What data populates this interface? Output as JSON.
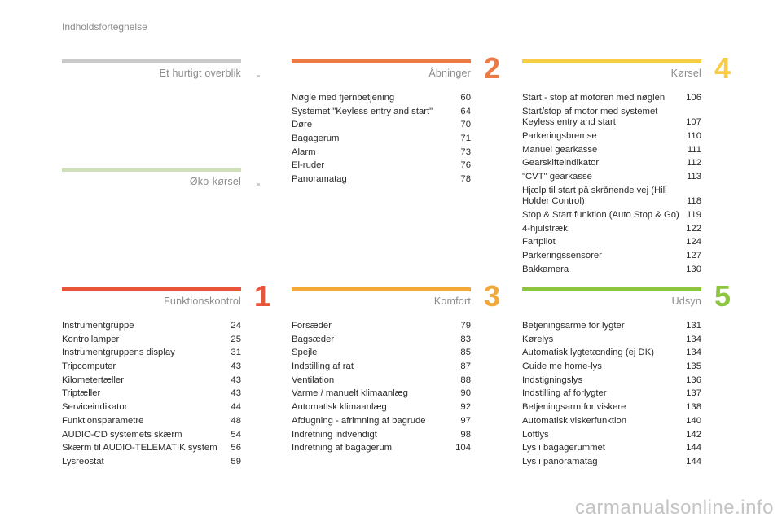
{
  "page_title": "Indholdsfortegnelse",
  "sections": {
    "quick": {
      "title": "Et hurtigt overblik",
      "color": "#c9c9c9"
    },
    "eco": {
      "title": "Øko-kørsel",
      "color": "#cfe0b8"
    },
    "funktion": {
      "title": "Funktionskontrol",
      "number": "1",
      "color": "#e8553a",
      "items": [
        {
          "label": "Instrumentgruppe",
          "page": "24"
        },
        {
          "label": "Kontrollamper",
          "page": "25"
        },
        {
          "label": "Instrumentgruppens display",
          "page": "31"
        },
        {
          "label": "Tripcomputer",
          "page": "43"
        },
        {
          "label": "Kilometertæller",
          "page": "43"
        },
        {
          "label": "Triptæller",
          "page": "43"
        },
        {
          "label": "Serviceindikator",
          "page": "44"
        },
        {
          "label": "Funktionsparametre",
          "page": "48"
        },
        {
          "label": "AUDIO-CD systemets skærm",
          "page": "54"
        },
        {
          "label": "Skærm til AUDIO-TELEMATIK system",
          "page": "56"
        },
        {
          "label": "Lysreostat",
          "page": "59"
        }
      ]
    },
    "aabninger": {
      "title": "Åbninger",
      "number": "2",
      "color": "#ec7a45",
      "items": [
        {
          "label": "Nøgle med fjernbetjening",
          "page": "60"
        },
        {
          "label": "Systemet \"Keyless entry and start\"",
          "page": "64"
        },
        {
          "label": "Døre",
          "page": "70"
        },
        {
          "label": "Bagagerum",
          "page": "71"
        },
        {
          "label": "Alarm",
          "page": "73"
        },
        {
          "label": "El-ruder",
          "page": "76"
        },
        {
          "label": "Panoramatag",
          "page": "78"
        }
      ]
    },
    "komfort": {
      "title": "Komfort",
      "number": "3",
      "color": "#f3a93a",
      "items": [
        {
          "label": "Forsæder",
          "page": "79"
        },
        {
          "label": "Bagsæder",
          "page": "83"
        },
        {
          "label": "Spejle",
          "page": "85"
        },
        {
          "label": "Indstilling af rat",
          "page": "87"
        },
        {
          "label": "Ventilation",
          "page": "88"
        },
        {
          "label": "Varme / manuelt klimaanlæg",
          "page": "90"
        },
        {
          "label": "Automatisk klimaanlæg",
          "page": "92"
        },
        {
          "label": "Afdugning - afrimning af bagrude",
          "page": "97"
        },
        {
          "label": "Indretning indvendigt",
          "page": "98"
        },
        {
          "label": "Indretning af bagagerum",
          "page": "104"
        }
      ]
    },
    "koersel": {
      "title": "Kørsel",
      "number": "4",
      "color": "#f6cd45",
      "items": [
        {
          "label": "Start - stop af motoren med nøglen",
          "page": "106"
        },
        {
          "label": "Start/stop af motor med systemet Keyless entry and start",
          "page": "107"
        },
        {
          "label": "Parkeringsbremse",
          "page": "110"
        },
        {
          "label": "Manuel gearkasse",
          "page": "111"
        },
        {
          "label": "Gearskifteindikator",
          "page": "112"
        },
        {
          "label": "\"CVT\" gearkasse",
          "page": "113"
        },
        {
          "label": "Hjælp til start på skrånende vej (Hill Holder Control)",
          "page": "118"
        },
        {
          "label": "Stop & Start funktion (Auto Stop & Go)",
          "page": "119"
        },
        {
          "label": "4-hjulstræk",
          "page": "122"
        },
        {
          "label": "Fartpilot",
          "page": "124"
        },
        {
          "label": "Parkeringssensorer",
          "page": "127"
        },
        {
          "label": "Bakkamera",
          "page": "130"
        }
      ]
    },
    "udsyn": {
      "title": "Udsyn",
      "number": "5",
      "color": "#8cc63e",
      "items": [
        {
          "label": "Betjeningsarme for lygter",
          "page": "131"
        },
        {
          "label": "Kørelys",
          "page": "134"
        },
        {
          "label": "Automatisk lygtetænding (ej DK)",
          "page": "134"
        },
        {
          "label": "Guide me home-lys",
          "page": "135"
        },
        {
          "label": "Indstigningslys",
          "page": "136"
        },
        {
          "label": "Indstilling af forlygter",
          "page": "137"
        },
        {
          "label": "Betjeningsarm for viskere",
          "page": "138"
        },
        {
          "label": "Automatisk viskerfunktion",
          "page": "140"
        },
        {
          "label": "Loftlys",
          "page": "142"
        },
        {
          "label": "Lys i bagagerummet",
          "page": "144"
        },
        {
          "label": "Lys i panoramatag",
          "page": "144"
        }
      ]
    }
  },
  "watermark": "carmanualsonline.info"
}
